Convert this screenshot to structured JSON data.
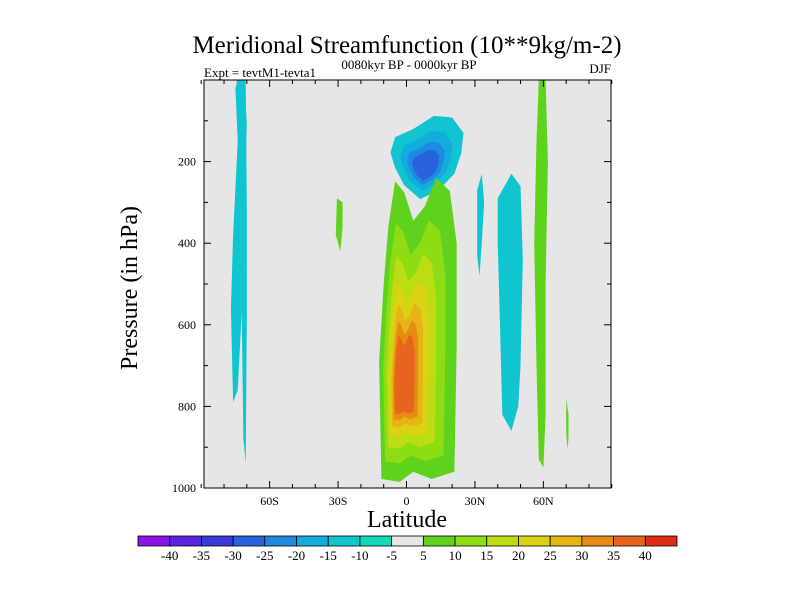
{
  "chart_data": {
    "type": "contour",
    "title": "Meridional Streamfunction (10**9kg/m-2)",
    "left_label": "Expt = tevtM1-tevta1",
    "center_label": "0080kyr BP - 0000kyr BP",
    "right_label": "DJF",
    "xlabel": "Latitude",
    "ylabel": "Pressure (in hPa)",
    "xlim": [
      -90,
      90
    ],
    "ylim": [
      1000,
      0
    ],
    "x_ticks": [
      {
        "value": -60,
        "label": "60S"
      },
      {
        "value": -30,
        "label": "30S"
      },
      {
        "value": 0,
        "label": "0"
      },
      {
        "value": 30,
        "label": "30N"
      },
      {
        "value": 60,
        "label": "60N"
      }
    ],
    "y_ticks": [
      {
        "value": 200,
        "label": "200"
      },
      {
        "value": 400,
        "label": "400"
      },
      {
        "value": 600,
        "label": "600"
      },
      {
        "value": 800,
        "label": "800"
      },
      {
        "value": 1000,
        "label": "1000"
      }
    ],
    "background_color": "#e6e6e6",
    "colorbar": {
      "labels": [
        "-40",
        "-35",
        "-30",
        "-25",
        "-20",
        "-15",
        "-10",
        "-5",
        "5",
        "10",
        "15",
        "20",
        "25",
        "30",
        "35",
        "40"
      ],
      "colors": [
        "#8a14e6",
        "#5a23e0",
        "#3a3ad6",
        "#2a62dd",
        "#1e8ae0",
        "#14acdc",
        "#10c4d0",
        "#14d9b8",
        "#e6e6e6",
        "#5fd21e",
        "#8edc14",
        "#bcdc14",
        "#dcd214",
        "#e6b414",
        "#e68c14",
        "#e6641e",
        "#dc2d14"
      ]
    },
    "features": [
      {
        "id": "upper-negative-cell",
        "latitude_range": [
          -7,
          25
        ],
        "pressure_range": [
          85,
          290
        ],
        "min_value": -20,
        "peak_latitude": 8,
        "peak_pressure": 220
      },
      {
        "id": "main-positive-cell",
        "latitude_range": [
          -12,
          22
        ],
        "pressure_range": [
          230,
          985
        ],
        "max_value": 35,
        "peak_latitude": -3,
        "peak_pressure": 760
      },
      {
        "id": "southern-polar-strip",
        "latitude_range": [
          -77,
          -70
        ],
        "pressure_range": [
          0,
          950
        ],
        "value": -5
      },
      {
        "id": "southern-midlat-blob",
        "latitude_range": [
          -31,
          -28
        ],
        "pressure_range": [
          290,
          420
        ],
        "value": 5
      },
      {
        "id": "northern-negative-blobs",
        "latitude_range": [
          32,
          51
        ],
        "pressure_range": [
          200,
          860
        ],
        "value": -5
      },
      {
        "id": "northern-polar-strip",
        "latitude_range": [
          56,
          62
        ],
        "pressure_range": [
          0,
          950
        ],
        "value": 5
      },
      {
        "id": "northern-high-lat-blob",
        "latitude_range": [
          70,
          71
        ],
        "pressure_range": [
          780,
          905
        ],
        "value": 5
      }
    ]
  }
}
